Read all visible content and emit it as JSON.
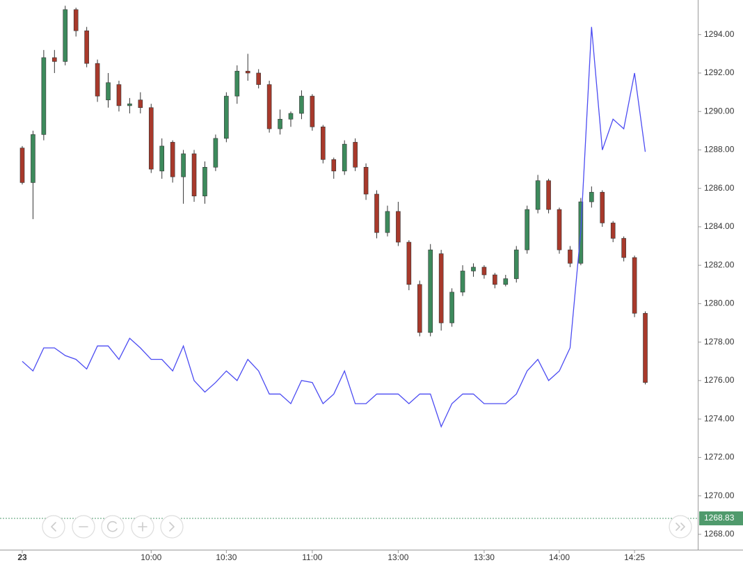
{
  "chart_data": {
    "type": "candlestick",
    "categories": [
      "23",
      null,
      null,
      null,
      null,
      null,
      null,
      null,
      null,
      null,
      null,
      null,
      "10:00",
      null,
      null,
      null,
      null,
      null,
      null,
      "10:30",
      null,
      null,
      null,
      null,
      null,
      null,
      null,
      "11:00",
      null,
      null,
      null,
      null,
      null,
      null,
      null,
      "13:00",
      null,
      null,
      null,
      null,
      null,
      null,
      null,
      "13:30",
      null,
      null,
      null,
      null,
      null,
      null,
      "14:00",
      null,
      null,
      null,
      null,
      null,
      null,
      "14:25",
      null
    ],
    "open": [
      1288.1,
      1286.3,
      1288.8,
      1292.8,
      1292.6,
      1295.3,
      1294.2,
      1292.5,
      1290.6,
      1291.4,
      1290.3,
      1290.6,
      1290.2,
      1286.9,
      1288.4,
      1286.6,
      1287.8,
      1285.6,
      1287.1,
      1288.6,
      1290.8,
      1292.1,
      1292.0,
      1291.4,
      1289.1,
      1289.6,
      1289.9,
      1290.8,
      1289.2,
      1287.5,
      1286.9,
      1288.4,
      1287.1,
      1285.7,
      1283.7,
      1284.8,
      1283.2,
      1281.0,
      1278.5,
      1282.6,
      1279.0,
      1280.6,
      1281.7,
      1281.9,
      1281.5,
      1281.0,
      1281.3,
      1282.8,
      1284.9,
      1286.4,
      1284.9,
      1282.8,
      1282.1,
      1285.3,
      1285.8,
      1284.2,
      1283.4,
      1282.4,
      1279.5
    ],
    "high": [
      1288.2,
      1289.0,
      1293.2,
      1293.2,
      1295.5,
      1295.4,
      1294.4,
      1292.7,
      1292.0,
      1291.6,
      1290.7,
      1291.0,
      1290.4,
      1288.6,
      1288.5,
      1288.0,
      1288.0,
      1287.4,
      1288.8,
      1291.0,
      1292.4,
      1293.0,
      1292.2,
      1291.6,
      1290.1,
      1290.0,
      1291.1,
      1290.9,
      1289.3,
      1287.6,
      1288.5,
      1288.6,
      1287.3,
      1285.9,
      1285.1,
      1285.3,
      1283.3,
      1281.2,
      1283.1,
      1282.8,
      1280.8,
      1282.0,
      1282.1,
      1282.0,
      1281.6,
      1281.5,
      1283.0,
      1285.1,
      1286.7,
      1286.5,
      1285.0,
      1283.0,
      1285.5,
      1286.1,
      1285.9,
      1284.3,
      1283.5,
      1282.5,
      1279.6
    ],
    "low": [
      1286.2,
      1284.4,
      1288.5,
      1292.0,
      1292.4,
      1293.9,
      1292.3,
      1290.5,
      1290.2,
      1290.0,
      1289.9,
      1289.9,
      1286.8,
      1286.5,
      1286.3,
      1285.2,
      1285.3,
      1285.2,
      1286.9,
      1288.4,
      1290.4,
      1291.6,
      1291.2,
      1288.9,
      1288.8,
      1289.2,
      1289.6,
      1289.0,
      1287.3,
      1286.5,
      1286.7,
      1286.9,
      1285.4,
      1283.4,
      1283.5,
      1283.0,
      1280.7,
      1278.3,
      1278.3,
      1278.6,
      1278.8,
      1280.4,
      1281.4,
      1281.3,
      1280.8,
      1280.9,
      1281.1,
      1282.6,
      1284.7,
      1284.7,
      1282.6,
      1281.9,
      1282.0,
      1285.0,
      1284.0,
      1283.2,
      1282.2,
      1279.3,
      1275.8
    ],
    "close": [
      1286.3,
      1288.8,
      1292.8,
      1292.6,
      1295.3,
      1294.2,
      1292.5,
      1290.8,
      1291.5,
      1290.3,
      1290.4,
      1290.2,
      1287.0,
      1288.2,
      1286.6,
      1287.8,
      1285.6,
      1287.1,
      1288.6,
      1290.8,
      1292.1,
      1292.0,
      1291.4,
      1289.1,
      1289.6,
      1289.9,
      1290.8,
      1289.2,
      1287.5,
      1286.9,
      1288.3,
      1287.1,
      1285.7,
      1283.7,
      1284.8,
      1283.2,
      1281.0,
      1278.5,
      1282.8,
      1279.0,
      1280.6,
      1281.7,
      1281.9,
      1281.5,
      1281.0,
      1281.3,
      1282.8,
      1284.9,
      1286.4,
      1284.9,
      1282.8,
      1282.1,
      1285.3,
      1285.8,
      1284.2,
      1283.4,
      1282.4,
      1279.5,
      1275.9
    ],
    "up_color": "#3d8a5c",
    "down_color": "#a8392b",
    "line": {
      "color": "#4b4bf2",
      "values": [
        1277.0,
        1276.5,
        1277.7,
        1277.7,
        1277.3,
        1277.1,
        1276.6,
        1277.8,
        1277.8,
        1277.1,
        1278.2,
        1277.7,
        1277.1,
        1277.1,
        1276.5,
        1277.8,
        1276.0,
        1275.4,
        1275.9,
        1276.5,
        1276.0,
        1277.1,
        1276.5,
        1275.3,
        1275.3,
        1274.8,
        1276.0,
        1275.9,
        1274.8,
        1275.3,
        1276.5,
        1274.8,
        1274.8,
        1275.3,
        1275.3,
        1275.3,
        1274.8,
        1275.3,
        1275.3,
        1273.6,
        1274.8,
        1275.3,
        1275.3,
        1274.8,
        1274.8,
        1274.8,
        1275.3,
        1276.5,
        1277.1,
        1276.0,
        1276.5,
        1277.7,
        1283.8,
        1294.4,
        1288.0,
        1289.6,
        1289.1,
        1292.0,
        1287.9
      ]
    },
    "last_price": 1268.83,
    "last_price_color": "#4f9a6c",
    "ylim": [
      1267.2,
      1295.8
    ],
    "yticks": [
      {
        "value": 1268,
        "label": "1268.00"
      },
      {
        "value": 1270,
        "label": "1270.00"
      },
      {
        "value": 1272,
        "label": "1272.00"
      },
      {
        "value": 1274,
        "label": "1274.00"
      },
      {
        "value": 1276,
        "label": "1276.00"
      },
      {
        "value": 1278,
        "label": "1278.00"
      },
      {
        "value": 1280,
        "label": "1280.00"
      },
      {
        "value": 1282,
        "label": "1282.00"
      },
      {
        "value": 1284,
        "label": "1284.00"
      },
      {
        "value": 1286,
        "label": "1286.00"
      },
      {
        "value": 1288,
        "label": "1288.00"
      },
      {
        "value": 1290,
        "label": "1290.00"
      },
      {
        "value": 1292,
        "label": "1292.00"
      },
      {
        "value": 1294,
        "label": "1294.00"
      }
    ],
    "grid": false
  }
}
